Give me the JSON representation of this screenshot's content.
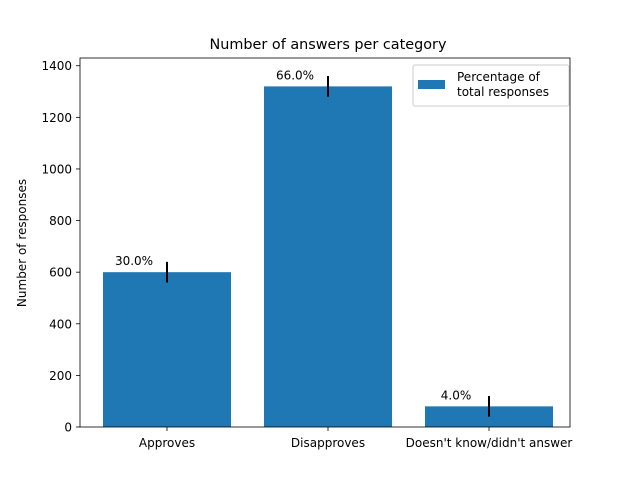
{
  "chart_data": {
    "type": "bar",
    "title": "Number of answers per category",
    "xlabel": "",
    "ylabel": "Number of responses",
    "categories": [
      "Approves",
      "Disapproves",
      "Doesn't know/didn't answer"
    ],
    "series": [
      {
        "name": "Percentage of\ntotal responses",
        "values": [
          600,
          1320,
          80
        ],
        "error": [
          40,
          40,
          40
        ],
        "labels": [
          "30.0%",
          "66.0%",
          "4.0%"
        ],
        "color": "#1f77b4"
      }
    ],
    "ylim": [
      0,
      1430
    ],
    "yticks": [
      0,
      200,
      400,
      600,
      800,
      1000,
      1200,
      1400
    ],
    "grid": false,
    "legend_position": "upper right"
  }
}
